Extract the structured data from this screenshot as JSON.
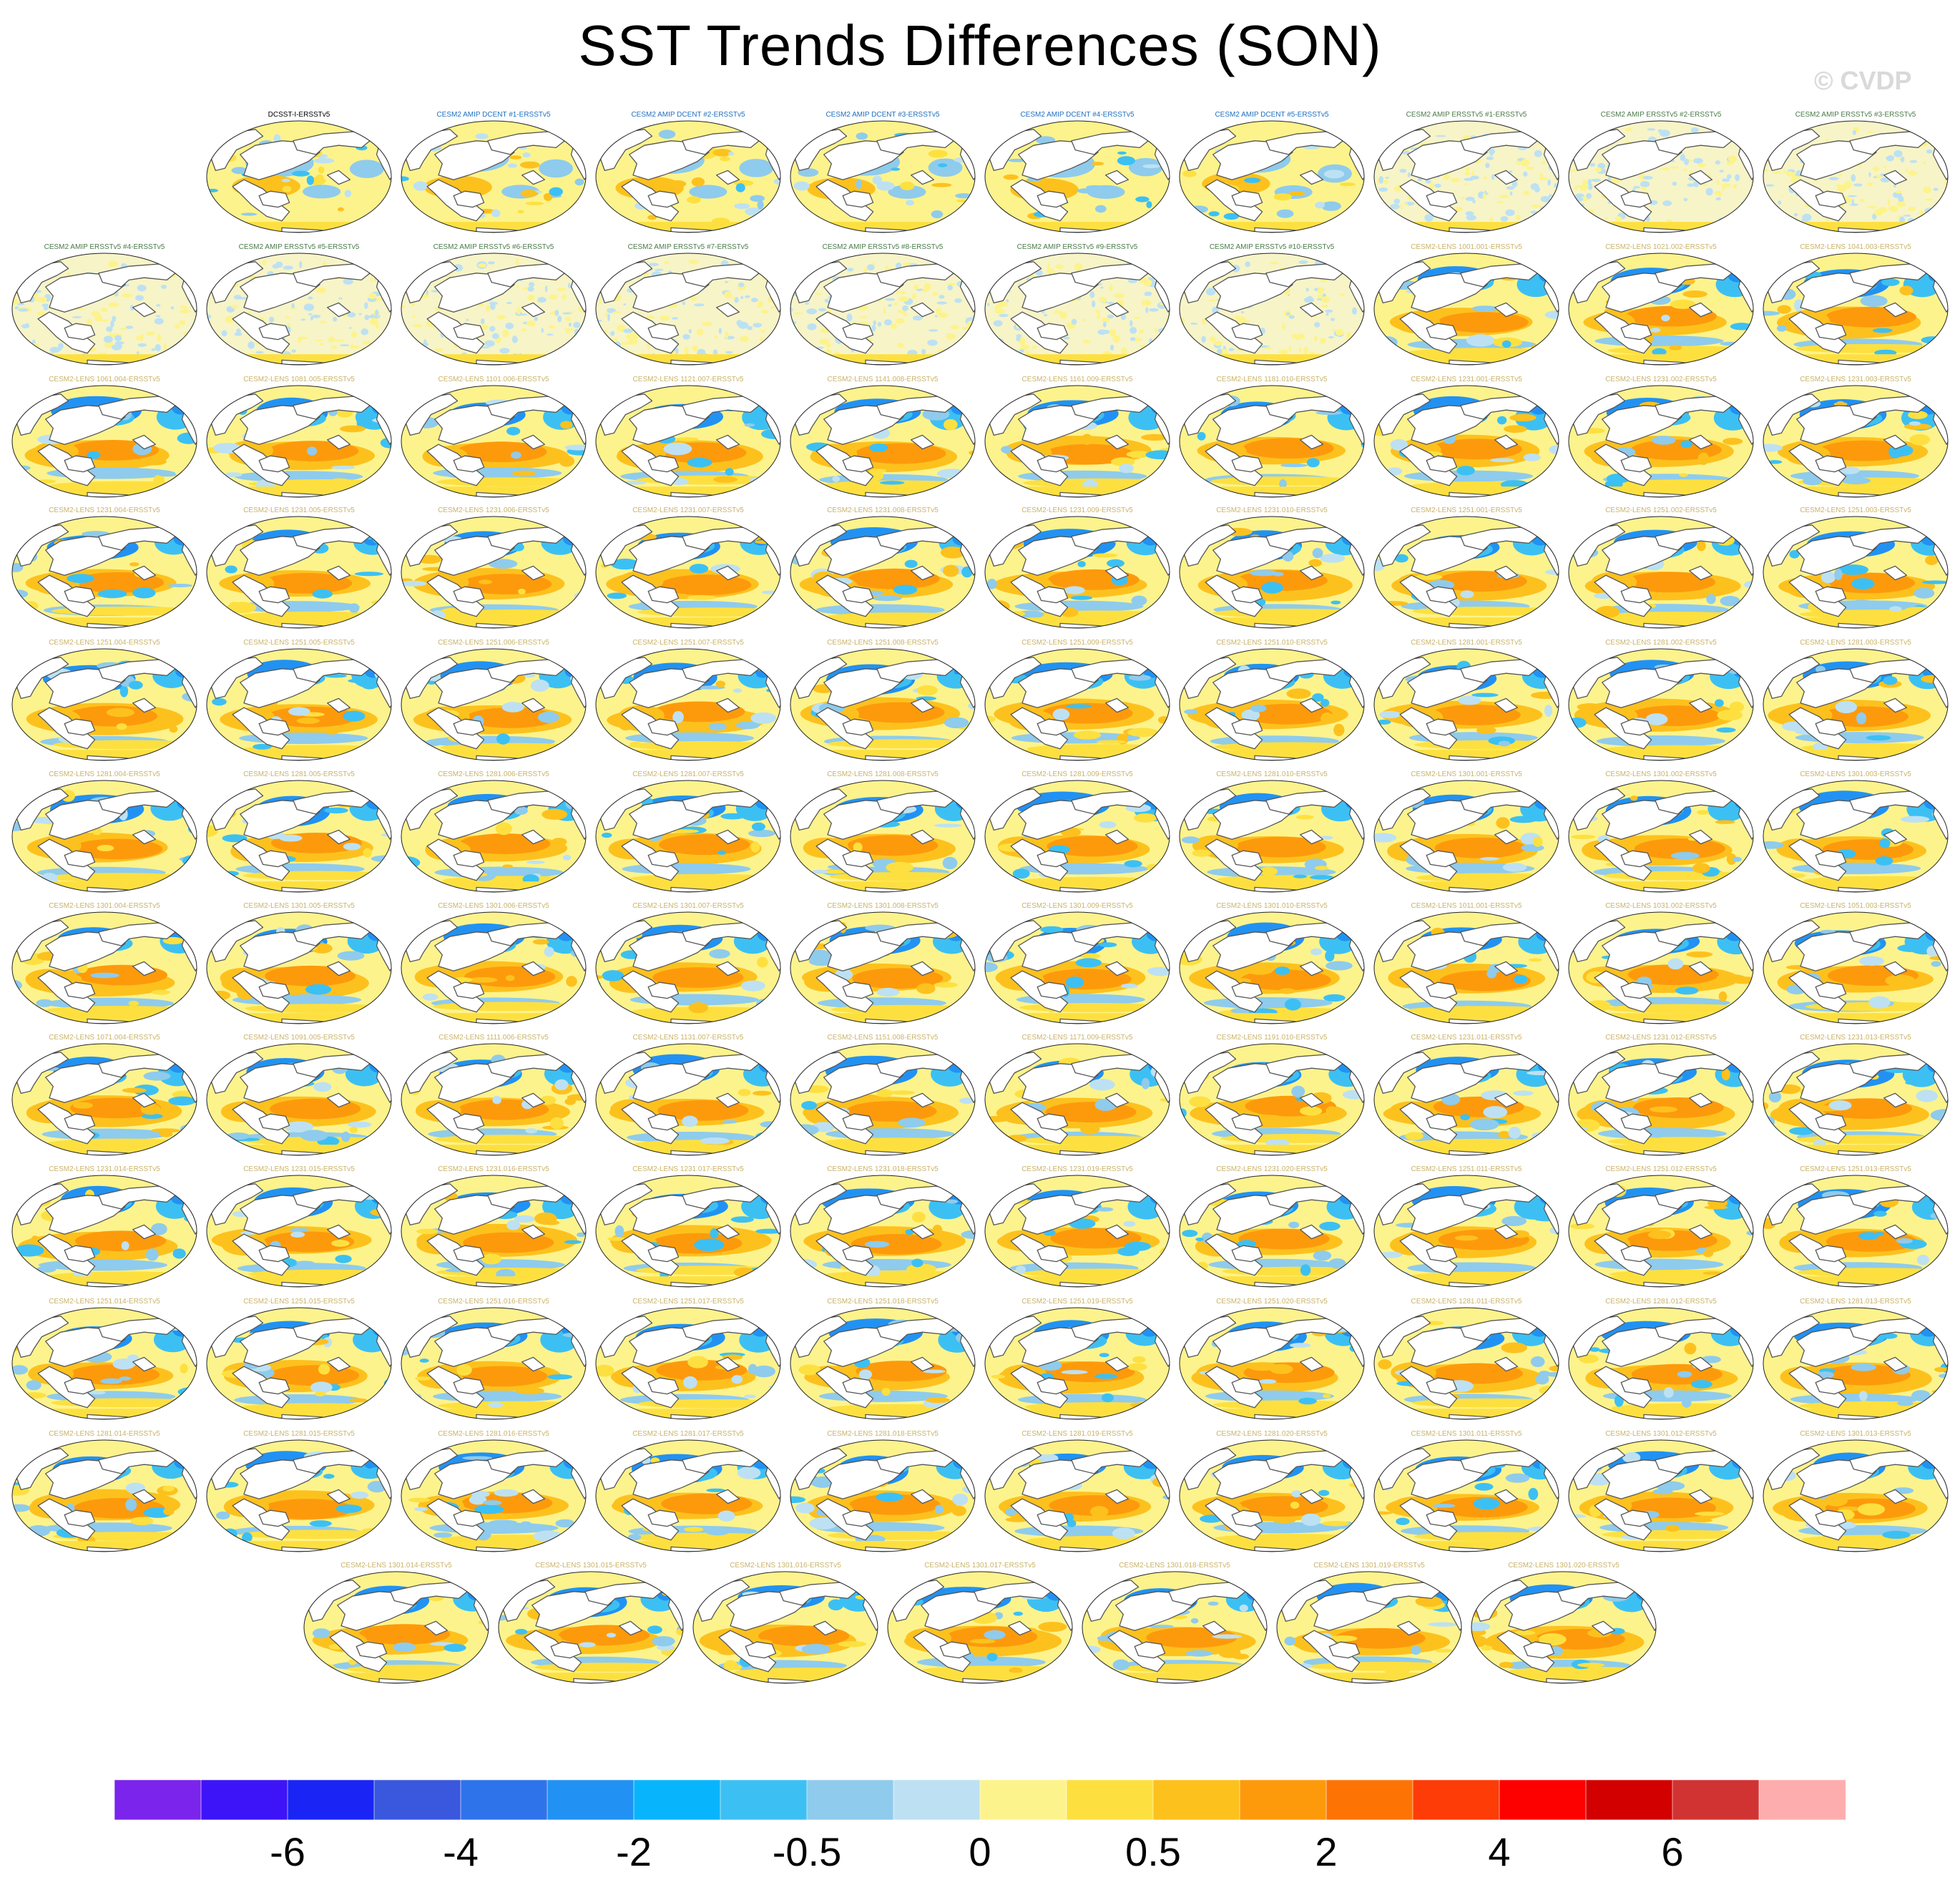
{
  "title": "SST Trends Differences (SON)",
  "copyright": "© CVDP",
  "panels": [
    {
      "title": "DCSST-I-ERSSTv5",
      "kind": "obs"
    },
    {
      "title": "CESM2 AMIP DCENT #1-ERSSTv5",
      "kind": "dcent"
    },
    {
      "title": "CESM2 AMIP DCENT #2-ERSSTv5",
      "kind": "dcent"
    },
    {
      "title": "CESM2 AMIP DCENT #3-ERSSTv5",
      "kind": "dcent"
    },
    {
      "title": "CESM2 AMIP DCENT #4-ERSSTv5",
      "kind": "dcent"
    },
    {
      "title": "CESM2 AMIP DCENT #5-ERSSTv5",
      "kind": "dcent"
    },
    {
      "title": "CESM2 AMIP ERSSTv5 #1-ERSSTv5",
      "kind": "amip"
    },
    {
      "title": "CESM2 AMIP ERSSTv5 #2-ERSSTv5",
      "kind": "amip"
    },
    {
      "title": "CESM2 AMIP ERSSTv5 #3-ERSSTv5",
      "kind": "amip"
    },
    {
      "title": "CESM2 AMIP ERSSTv5 #4-ERSSTv5",
      "kind": "amip"
    },
    {
      "title": "CESM2 AMIP ERSSTv5 #5-ERSSTv5",
      "kind": "amip"
    },
    {
      "title": "CESM2 AMIP ERSSTv5 #6-ERSSTv5",
      "kind": "amip"
    },
    {
      "title": "CESM2 AMIP ERSSTv5 #7-ERSSTv5",
      "kind": "amip"
    },
    {
      "title": "CESM2 AMIP ERSSTv5 #8-ERSSTv5",
      "kind": "amip"
    },
    {
      "title": "CESM2 AMIP ERSSTv5 #9-ERSSTv5",
      "kind": "amip"
    },
    {
      "title": "CESM2 AMIP ERSSTv5 #10-ERSSTv5",
      "kind": "amip"
    },
    {
      "title": "CESM2-LENS 1001.001-ERSSTv5",
      "kind": "lens"
    },
    {
      "title": "CESM2-LENS 1021.002-ERSSTv5",
      "kind": "lens"
    },
    {
      "title": "CESM2-LENS 1041.003-ERSSTv5",
      "kind": "lens"
    },
    {
      "title": "CESM2-LENS 1061.004-ERSSTv5",
      "kind": "lens"
    },
    {
      "title": "CESM2-LENS 1081.005-ERSSTv5",
      "kind": "lens"
    },
    {
      "title": "CESM2-LENS 1101.006-ERSSTv5",
      "kind": "lens"
    },
    {
      "title": "CESM2-LENS 1121.007-ERSSTv5",
      "kind": "lens"
    },
    {
      "title": "CESM2-LENS 1141.008-ERSSTv5",
      "kind": "lens"
    },
    {
      "title": "CESM2-LENS 1161.009-ERSSTv5",
      "kind": "lens"
    },
    {
      "title": "CESM2-LENS 1181.010-ERSSTv5",
      "kind": "lens"
    },
    {
      "title": "CESM2-LENS 1231.001-ERSSTv5",
      "kind": "lens"
    },
    {
      "title": "CESM2-LENS 1231.002-ERSSTv5",
      "kind": "lens"
    },
    {
      "title": "CESM2-LENS 1231.003-ERSSTv5",
      "kind": "lens"
    },
    {
      "title": "CESM2-LENS 1231.004-ERSSTv5",
      "kind": "lens"
    },
    {
      "title": "CESM2-LENS 1231.005-ERSSTv5",
      "kind": "lens"
    },
    {
      "title": "CESM2-LENS 1231.006-ERSSTv5",
      "kind": "lens"
    },
    {
      "title": "CESM2-LENS 1231.007-ERSSTv5",
      "kind": "lens"
    },
    {
      "title": "CESM2-LENS 1231.008-ERSSTv5",
      "kind": "lens"
    },
    {
      "title": "CESM2-LENS 1231.009-ERSSTv5",
      "kind": "lens"
    },
    {
      "title": "CESM2-LENS 1231.010-ERSSTv5",
      "kind": "lens"
    },
    {
      "title": "CESM2-LENS 1251.001-ERSSTv5",
      "kind": "lens"
    },
    {
      "title": "CESM2-LENS 1251.002-ERSSTv5",
      "kind": "lens"
    },
    {
      "title": "CESM2-LENS 1251.003-ERSSTv5",
      "kind": "lens"
    },
    {
      "title": "CESM2-LENS 1251.004-ERSSTv5",
      "kind": "lens"
    },
    {
      "title": "CESM2-LENS 1251.005-ERSSTv5",
      "kind": "lens"
    },
    {
      "title": "CESM2-LENS 1251.006-ERSSTv5",
      "kind": "lens"
    },
    {
      "title": "CESM2-LENS 1251.007-ERSSTv5",
      "kind": "lens"
    },
    {
      "title": "CESM2-LENS 1251.008-ERSSTv5",
      "kind": "lens"
    },
    {
      "title": "CESM2-LENS 1251.009-ERSSTv5",
      "kind": "lens"
    },
    {
      "title": "CESM2-LENS 1251.010-ERSSTv5",
      "kind": "lens"
    },
    {
      "title": "CESM2-LENS 1281.001-ERSSTv5",
      "kind": "lens"
    },
    {
      "title": "CESM2-LENS 1281.002-ERSSTv5",
      "kind": "lens"
    },
    {
      "title": "CESM2-LENS 1281.003-ERSSTv5",
      "kind": "lens"
    },
    {
      "title": "CESM2-LENS 1281.004-ERSSTv5",
      "kind": "lens"
    },
    {
      "title": "CESM2-LENS 1281.005-ERSSTv5",
      "kind": "lens"
    },
    {
      "title": "CESM2-LENS 1281.006-ERSSTv5",
      "kind": "lens"
    },
    {
      "title": "CESM2-LENS 1281.007-ERSSTv5",
      "kind": "lens"
    },
    {
      "title": "CESM2-LENS 1281.008-ERSSTv5",
      "kind": "lens"
    },
    {
      "title": "CESM2-LENS 1281.009-ERSSTv5",
      "kind": "lens"
    },
    {
      "title": "CESM2-LENS 1281.010-ERSSTv5",
      "kind": "lens"
    },
    {
      "title": "CESM2-LENS 1301.001-ERSSTv5",
      "kind": "lens"
    },
    {
      "title": "CESM2-LENS 1301.002-ERSSTv5",
      "kind": "lens"
    },
    {
      "title": "CESM2-LENS 1301.003-ERSSTv5",
      "kind": "lens"
    },
    {
      "title": "CESM2-LENS 1301.004-ERSSTv5",
      "kind": "lens"
    },
    {
      "title": "CESM2-LENS 1301.005-ERSSTv5",
      "kind": "lens"
    },
    {
      "title": "CESM2-LENS 1301.006-ERSSTv5",
      "kind": "lens"
    },
    {
      "title": "CESM2-LENS 1301.007-ERSSTv5",
      "kind": "lens"
    },
    {
      "title": "CESM2-LENS 1301.008-ERSSTv5",
      "kind": "lens"
    },
    {
      "title": "CESM2-LENS 1301.009-ERSSTv5",
      "kind": "lens"
    },
    {
      "title": "CESM2-LENS 1301.010-ERSSTv5",
      "kind": "lens"
    },
    {
      "title": "CESM2-LENS 1011.001-ERSSTv5",
      "kind": "lens"
    },
    {
      "title": "CESM2-LENS 1031.002-ERSSTv5",
      "kind": "lens"
    },
    {
      "title": "CESM2-LENS 1051.003-ERSSTv5",
      "kind": "lens"
    },
    {
      "title": "CESM2-LENS 1071.004-ERSSTv5",
      "kind": "lens"
    },
    {
      "title": "CESM2-LENS 1091.005-ERSSTv5",
      "kind": "lens"
    },
    {
      "title": "CESM2-LENS 1111.006-ERSSTv5",
      "kind": "lens"
    },
    {
      "title": "CESM2-LENS 1131.007-ERSSTv5",
      "kind": "lens"
    },
    {
      "title": "CESM2-LENS 1151.008-ERSSTv5",
      "kind": "lens"
    },
    {
      "title": "CESM2-LENS 1171.009-ERSSTv5",
      "kind": "lens"
    },
    {
      "title": "CESM2-LENS 1191.010-ERSSTv5",
      "kind": "lens"
    },
    {
      "title": "CESM2-LENS 1231.011-ERSSTv5",
      "kind": "lens"
    },
    {
      "title": "CESM2-LENS 1231.012-ERSSTv5",
      "kind": "lens"
    },
    {
      "title": "CESM2-LENS 1231.013-ERSSTv5",
      "kind": "lens"
    },
    {
      "title": "CESM2-LENS 1231.014-ERSSTv5",
      "kind": "lens"
    },
    {
      "title": "CESM2-LENS 1231.015-ERSSTv5",
      "kind": "lens"
    },
    {
      "title": "CESM2-LENS 1231.016-ERSSTv5",
      "kind": "lens"
    },
    {
      "title": "CESM2-LENS 1231.017-ERSSTv5",
      "kind": "lens"
    },
    {
      "title": "CESM2-LENS 1231.018-ERSSTv5",
      "kind": "lens"
    },
    {
      "title": "CESM2-LENS 1231.019-ERSSTv5",
      "kind": "lens"
    },
    {
      "title": "CESM2-LENS 1231.020-ERSSTv5",
      "kind": "lens"
    },
    {
      "title": "CESM2-LENS 1251.011-ERSSTv5",
      "kind": "lens"
    },
    {
      "title": "CESM2-LENS 1251.012-ERSSTv5",
      "kind": "lens"
    },
    {
      "title": "CESM2-LENS 1251.013-ERSSTv5",
      "kind": "lens"
    },
    {
      "title": "CESM2-LENS 1251.014-ERSSTv5",
      "kind": "lens"
    },
    {
      "title": "CESM2-LENS 1251.015-ERSSTv5",
      "kind": "lens"
    },
    {
      "title": "CESM2-LENS 1251.016-ERSSTv5",
      "kind": "lens"
    },
    {
      "title": "CESM2-LENS 1251.017-ERSSTv5",
      "kind": "lens"
    },
    {
      "title": "CESM2-LENS 1251.018-ERSSTv5",
      "kind": "lens"
    },
    {
      "title": "CESM2-LENS 1251.019-ERSSTv5",
      "kind": "lens"
    },
    {
      "title": "CESM2-LENS 1251.020-ERSSTv5",
      "kind": "lens"
    },
    {
      "title": "CESM2-LENS 1281.011-ERSSTv5",
      "kind": "lens"
    },
    {
      "title": "CESM2-LENS 1281.012-ERSSTv5",
      "kind": "lens"
    },
    {
      "title": "CESM2-LENS 1281.013-ERSSTv5",
      "kind": "lens"
    },
    {
      "title": "CESM2-LENS 1281.014-ERSSTv5",
      "kind": "lens"
    },
    {
      "title": "CESM2-LENS 1281.015-ERSSTv5",
      "kind": "lens"
    },
    {
      "title": "CESM2-LENS 1281.016-ERSSTv5",
      "kind": "lens"
    },
    {
      "title": "CESM2-LENS 1281.017-ERSSTv5",
      "kind": "lens"
    },
    {
      "title": "CESM2-LENS 1281.018-ERSSTv5",
      "kind": "lens"
    },
    {
      "title": "CESM2-LENS 1281.019-ERSSTv5",
      "kind": "lens"
    },
    {
      "title": "CESM2-LENS 1281.020-ERSSTv5",
      "kind": "lens"
    },
    {
      "title": "CESM2-LENS 1301.011-ERSSTv5",
      "kind": "lens"
    },
    {
      "title": "CESM2-LENS 1301.012-ERSSTv5",
      "kind": "lens"
    },
    {
      "title": "CESM2-LENS 1301.013-ERSSTv5",
      "kind": "lens"
    },
    {
      "title": "CESM2-LENS 1301.014-ERSSTv5",
      "kind": "lens"
    },
    {
      "title": "CESM2-LENS 1301.015-ERSSTv5",
      "kind": "lens"
    },
    {
      "title": "CESM2-LENS 1301.016-ERSSTv5",
      "kind": "lens"
    },
    {
      "title": "CESM2-LENS 1301.017-ERSSTv5",
      "kind": "lens"
    },
    {
      "title": "CESM2-LENS 1301.018-ERSSTv5",
      "kind": "lens"
    },
    {
      "title": "CESM2-LENS 1301.019-ERSSTv5",
      "kind": "lens"
    },
    {
      "title": "CESM2-LENS 1301.020-ERSSTv5",
      "kind": "lens"
    }
  ],
  "colorbar": {
    "colors": [
      "#7b24ec",
      "#3d14f7",
      "#1a25f5",
      "#3a58de",
      "#2f73ea",
      "#2192f3",
      "#08b5fd",
      "#3cc0f3",
      "#8fcbec",
      "#bde1f3",
      "#fdf38c",
      "#fde040",
      "#fdc11e",
      "#fd9a0c",
      "#fd7405",
      "#fd3c07",
      "#fd0000",
      "#d30000",
      "#d13333",
      "#fdadad"
    ],
    "tick_labels": [
      "-6",
      "-4",
      "-2",
      "-0.5",
      "0",
      "0.5",
      "2",
      "4",
      "6"
    ],
    "tick_boundaries": [
      2,
      4,
      6,
      8,
      10,
      12,
      14,
      16,
      18
    ]
  },
  "title_colors": {
    "obs": "#000000",
    "dcent": "#1f6fbf",
    "amip": "#4b7a4b",
    "lens": "#c9b36a"
  },
  "land_color": "#ffffff",
  "coast_color": "#555555"
}
